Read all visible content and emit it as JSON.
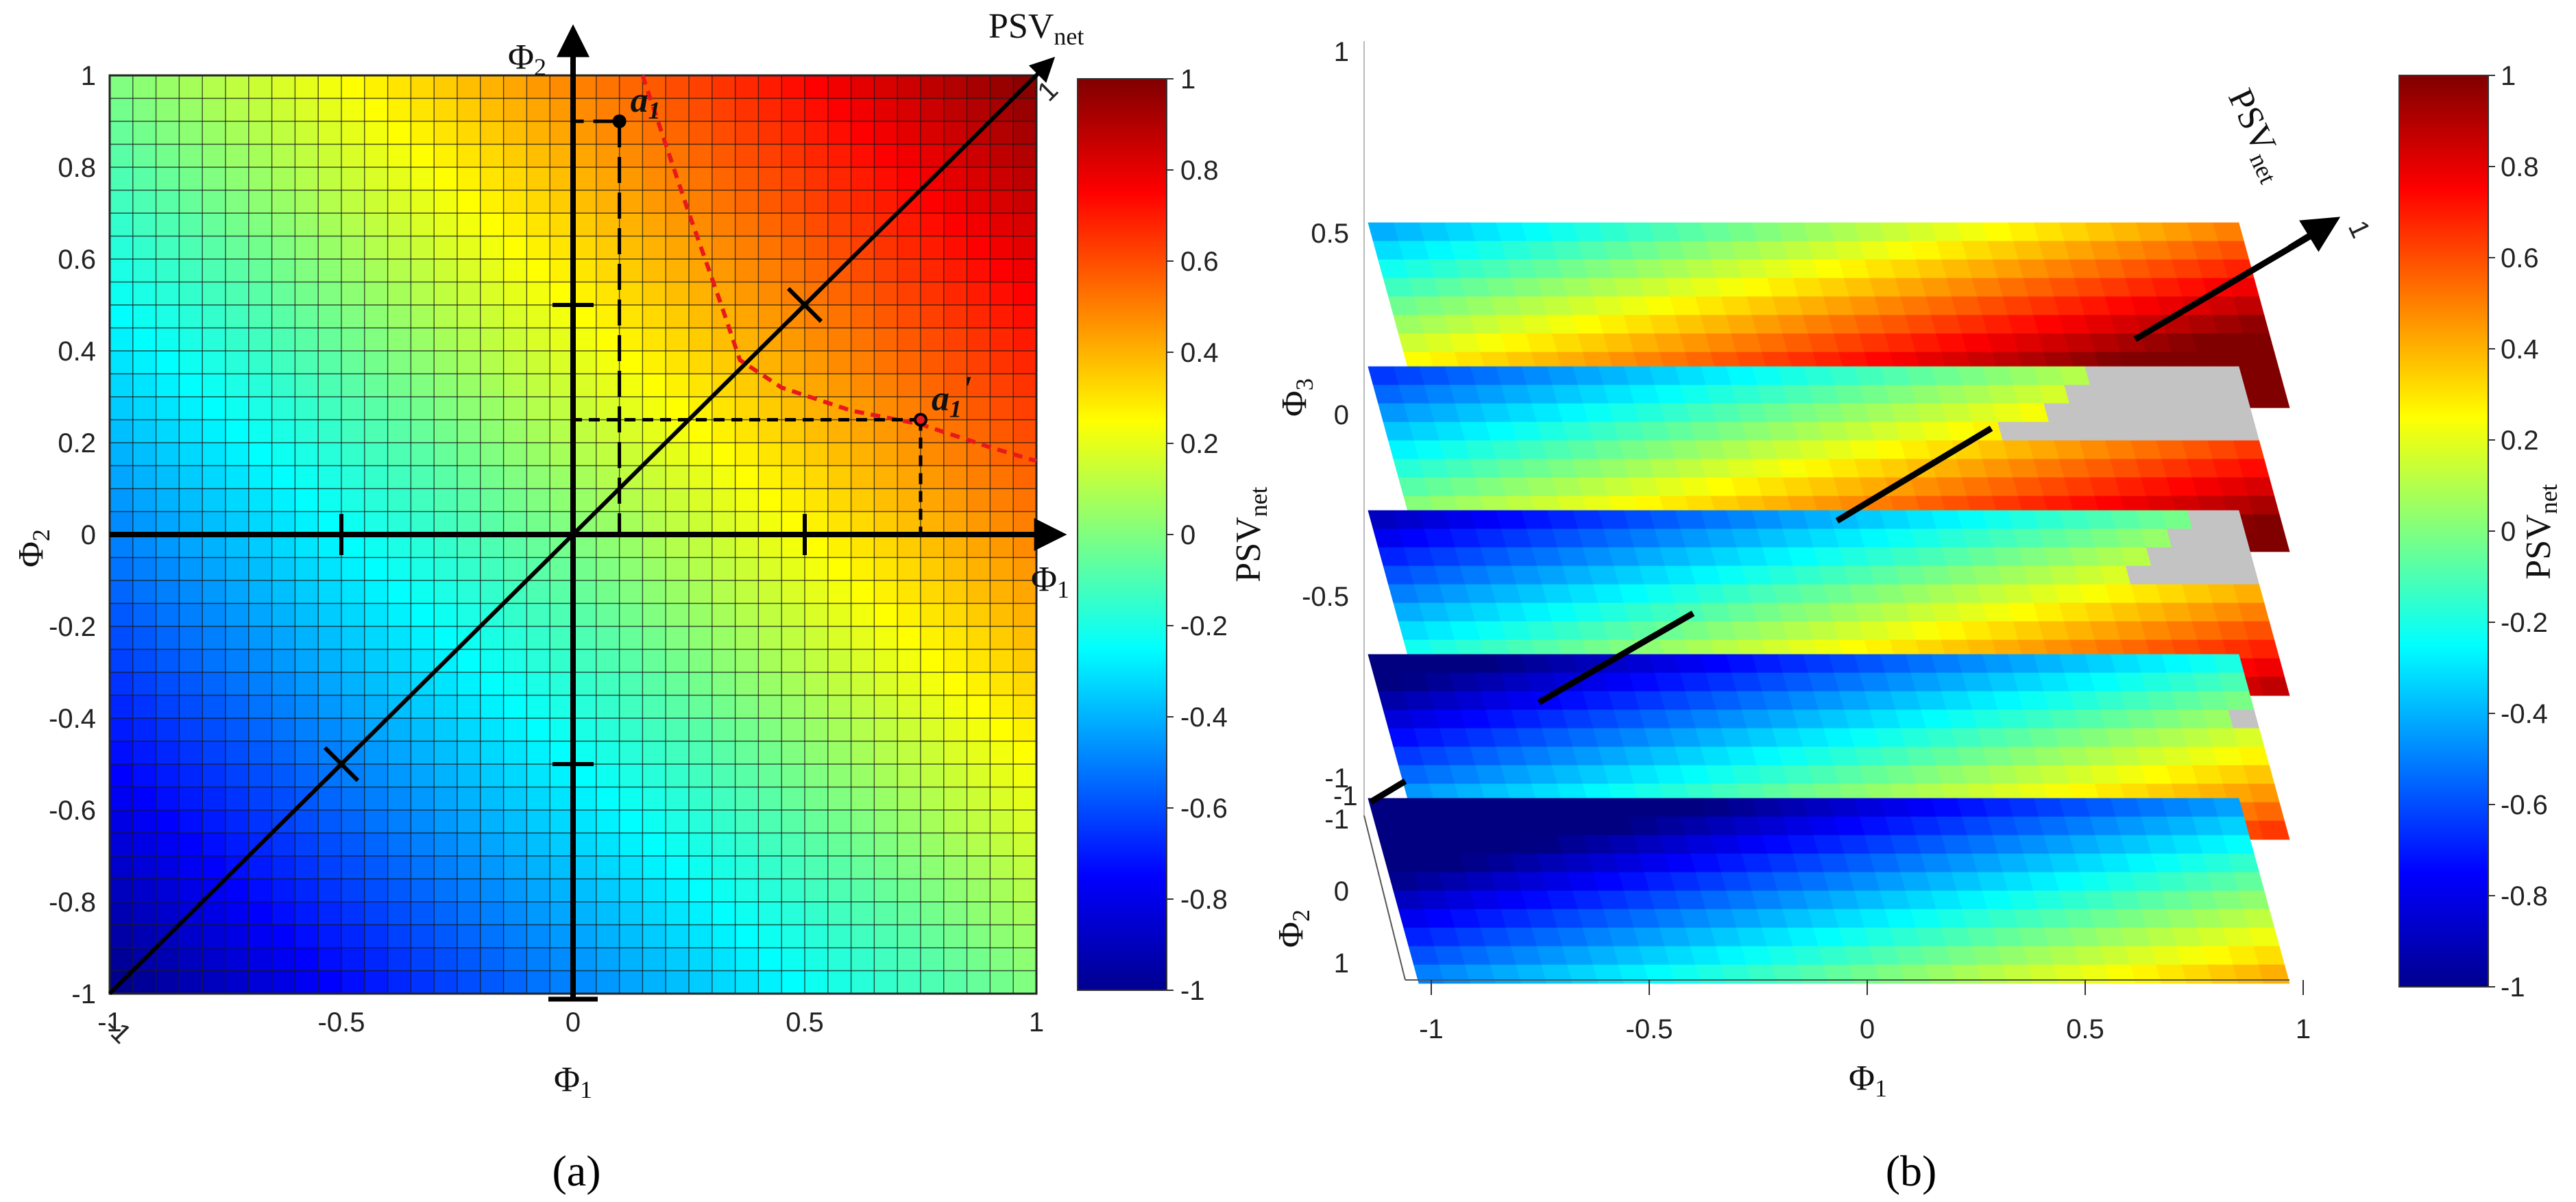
{
  "chart_data": [
    {
      "panel": "a",
      "type": "heatmap",
      "caption": "(a)",
      "x": {
        "symbol": "Φ",
        "sub": "1",
        "ticks": [
          -1,
          -0.5,
          0,
          0.5,
          1
        ],
        "tick_labels": [
          "-1",
          "-0.5",
          "0",
          "0.5",
          "1"
        ],
        "range": [
          -1,
          1
        ]
      },
      "y": {
        "symbol": "Φ",
        "sub": "2",
        "ticks": [
          -1,
          -0.8,
          -0.6,
          -0.4,
          -0.2,
          0,
          0.2,
          0.4,
          0.6,
          0.8,
          1
        ],
        "tick_labels": [
          "-1",
          "-0.8",
          "-0.6",
          "-0.4",
          "-0.2",
          "0",
          "0.2",
          "0.4",
          "0.6",
          "0.8",
          "1"
        ],
        "range": [
          -1,
          1
        ]
      },
      "grid_cells": 40,
      "value_formula": "PSV_net = (Phi1 + Phi2) / 2",
      "colorbar": {
        "label": "PSV",
        "label_sub": "net",
        "ticks": [
          "1",
          "0.8",
          "0.6",
          "0.4",
          "0.2",
          "0",
          "-0.2",
          "-0.4",
          "-0.6",
          "-0.8",
          "-1"
        ],
        "range": [
          -1,
          1
        ],
        "colormap": "jet"
      },
      "overlay_axes": {
        "phi1_label": "Φ",
        "phi1_sub": "1",
        "phi2_label": "Φ",
        "phi2_sub": "2",
        "psv_label": "PSV",
        "psv_sub": "net",
        "diag_end_label_pos": "1",
        "diag_end_label_neg": "-1",
        "diag_crosses": [
          -0.5,
          0.5
        ]
      },
      "points": [
        {
          "label": "a",
          "sub": "1",
          "x": 0.1,
          "y": 0.9
        },
        {
          "label": "a",
          "sub": "1",
          "prime": "'",
          "x": 0.75,
          "y": 0.25
        }
      ],
      "indifference_curve": {
        "color": "#e8191c",
        "x": [
          0.15,
          0.19,
          0.25,
          0.32,
          0.36,
          0.45,
          0.6,
          0.75,
          0.9,
          1.0
        ],
        "y": [
          1.0,
          0.88,
          0.7,
          0.5,
          0.38,
          0.32,
          0.27,
          0.24,
          0.19,
          0.16
        ]
      }
    },
    {
      "panel": "b",
      "type": "heatmap",
      "caption": "(b)",
      "subtype": "stacked 3D slices",
      "x": {
        "symbol": "Φ",
        "sub": "1",
        "ticks": [
          -1,
          -0.5,
          0,
          0.5,
          1
        ],
        "tick_labels": [
          "-1",
          "-0.5",
          "0",
          "0.5",
          "1"
        ],
        "range": [
          -1,
          1
        ]
      },
      "y": {
        "symbol": "Φ",
        "sub": "2",
        "ticks": [
          -1,
          0,
          1
        ],
        "tick_labels": [
          "-1",
          "0",
          "1"
        ],
        "range": [
          -1,
          1
        ]
      },
      "z": {
        "symbol": "Φ",
        "sub": "3",
        "ticks": [
          1,
          0.5,
          0,
          -0.5,
          -1
        ],
        "tick_labels": [
          "1",
          "0.5",
          "0",
          "-0.5",
          "-1"
        ],
        "range": [
          -1,
          1
        ]
      },
      "slice_levels": [
        1,
        0.5,
        0,
        -0.5,
        -1
      ],
      "value_formula": "PSV_net = (Phi1 + Phi2 + Phi3) / 3",
      "colorbar": {
        "label": "PSV",
        "label_sub": "net",
        "ticks": [
          "1",
          "0.8",
          "0.6",
          "0.4",
          "0.2",
          "0",
          "-0.2",
          "-0.4",
          "-0.6",
          "-0.8",
          "-1"
        ],
        "range": [
          -1,
          1
        ],
        "colormap": "jet"
      },
      "overlay_axes": {
        "psv_label": "PSV",
        "psv_sub": "net",
        "diag_end_label_pos": "1",
        "diag_end_label_neg": "-1"
      },
      "slice_gray_color": "#c3c3c3"
    }
  ]
}
